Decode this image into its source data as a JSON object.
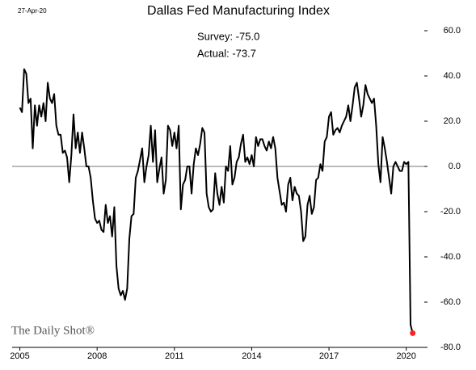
{
  "chart_data": {
    "type": "line",
    "date_stamp": "27-Apr-20",
    "title": "Dallas Fed Manufacturing Index",
    "annotations": [
      "Survey: -75.0",
      "Actual: -73.7"
    ],
    "source": "The Daily Shot®",
    "color": "#000000",
    "highlight_color": "#ff2020",
    "zero_line": true,
    "x": [
      2005,
      2005.083,
      2005.167,
      2005.25,
      2005.333,
      2005.417,
      2005.5,
      2005.583,
      2005.667,
      2005.75,
      2005.833,
      2005.917,
      2006,
      2006.083,
      2006.167,
      2006.25,
      2006.333,
      2006.417,
      2006.5,
      2006.583,
      2006.667,
      2006.75,
      2006.833,
      2006.917,
      2007,
      2007.083,
      2007.167,
      2007.25,
      2007.333,
      2007.417,
      2007.5,
      2007.583,
      2007.667,
      2007.75,
      2007.833,
      2007.917,
      2008,
      2008.083,
      2008.167,
      2008.25,
      2008.333,
      2008.417,
      2008.5,
      2008.583,
      2008.667,
      2008.75,
      2008.833,
      2008.917,
      2009,
      2009.083,
      2009.167,
      2009.25,
      2009.333,
      2009.417,
      2009.5,
      2009.583,
      2009.667,
      2009.75,
      2009.833,
      2009.917,
      2010,
      2010.083,
      2010.167,
      2010.25,
      2010.333,
      2010.417,
      2010.5,
      2010.583,
      2010.667,
      2010.75,
      2010.833,
      2010.917,
      2011,
      2011.083,
      2011.167,
      2011.25,
      2011.333,
      2011.417,
      2011.5,
      2011.583,
      2011.667,
      2011.75,
      2011.833,
      2011.917,
      2012,
      2012.083,
      2012.167,
      2012.25,
      2012.333,
      2012.417,
      2012.5,
      2012.583,
      2012.667,
      2012.75,
      2012.833,
      2012.917,
      2013,
      2013.083,
      2013.167,
      2013.25,
      2013.333,
      2013.417,
      2013.5,
      2013.583,
      2013.667,
      2013.75,
      2013.833,
      2013.917,
      2014,
      2014.083,
      2014.167,
      2014.25,
      2014.333,
      2014.417,
      2014.5,
      2014.583,
      2014.667,
      2014.75,
      2014.833,
      2014.917,
      2015,
      2015.083,
      2015.167,
      2015.25,
      2015.333,
      2015.417,
      2015.5,
      2015.583,
      2015.667,
      2015.75,
      2015.833,
      2015.917,
      2016,
      2016.083,
      2016.167,
      2016.25,
      2016.333,
      2016.417,
      2016.5,
      2016.583,
      2016.667,
      2016.75,
      2016.833,
      2016.917,
      2017,
      2017.083,
      2017.167,
      2017.25,
      2017.333,
      2017.417,
      2017.5,
      2017.583,
      2017.667,
      2017.75,
      2017.833,
      2017.917,
      2018,
      2018.083,
      2018.167,
      2018.25,
      2018.333,
      2018.417,
      2018.5,
      2018.583,
      2018.667,
      2018.75,
      2018.833,
      2018.917,
      2019,
      2019.083,
      2019.167,
      2019.25,
      2019.333,
      2019.417,
      2019.5,
      2019.583,
      2019.667,
      2019.75,
      2019.833,
      2019.917,
      2020,
      2020.083,
      2020.167,
      2020.25
    ],
    "values": [
      26,
      24,
      43,
      41,
      28,
      30,
      8,
      27,
      18,
      27,
      22,
      28,
      20,
      37,
      30,
      28,
      32,
      18,
      14,
      14,
      6,
      7,
      4,
      -7,
      5,
      23,
      8,
      15,
      6,
      15,
      8,
      0,
      0,
      -5,
      -15,
      -23,
      -25,
      -24,
      -28,
      -29,
      -17,
      -25,
      -22,
      -31,
      -18,
      -44,
      -54,
      -57,
      -55,
      -59,
      -54,
      -32,
      -22,
      -21,
      -5,
      -2,
      3,
      8,
      -7,
      0,
      5,
      18,
      2,
      16,
      -7,
      -1,
      4,
      -12,
      -6,
      18,
      16,
      9,
      15,
      8,
      18,
      -19,
      -8,
      -6,
      0,
      0,
      -12,
      1,
      8,
      5,
      10,
      17,
      15,
      -12,
      -18,
      -20,
      -19,
      -3,
      -12,
      -17,
      -9,
      -16,
      0,
      -2,
      9,
      -8,
      -5,
      2,
      4,
      10,
      14,
      2,
      4,
      1,
      5,
      0,
      13,
      9,
      12,
      12,
      9,
      7,
      11,
      8,
      13,
      8,
      -5,
      -11,
      -17,
      -16,
      -20,
      -8,
      -5,
      -15,
      -9,
      -12,
      -13,
      -20,
      -33,
      -31,
      -17,
      -13,
      -21,
      -18,
      -6,
      -5,
      1,
      -2,
      11,
      13,
      22,
      24,
      14,
      16,
      17,
      15,
      18,
      20,
      22,
      27,
      20,
      27,
      35,
      37,
      30,
      22,
      27,
      36,
      32,
      30,
      28,
      30,
      18,
      1,
      -7,
      13,
      8,
      2,
      -5,
      -12,
      0,
      2,
      0,
      -2,
      -2,
      2,
      1,
      2,
      -70.0,
      -73.7
    ],
    "xlim": [
      2004.7,
      2020.7
    ],
    "xticks": [
      2005,
      2008,
      2011,
      2014,
      2017,
      2020
    ],
    "ylim": [
      -80,
      70
    ],
    "yticks": [
      {
        "value": -80,
        "label": "-80.0"
      },
      {
        "value": -60,
        "label": "-60.0"
      },
      {
        "value": -40,
        "label": "-40.0"
      },
      {
        "value": -20,
        "label": "-20.0"
      },
      {
        "value": 0,
        "label": "0.0"
      },
      {
        "value": 20,
        "label": "20.0"
      },
      {
        "value": 40,
        "label": "40.0"
      },
      {
        "value": 60,
        "label": "60.0"
      }
    ]
  }
}
